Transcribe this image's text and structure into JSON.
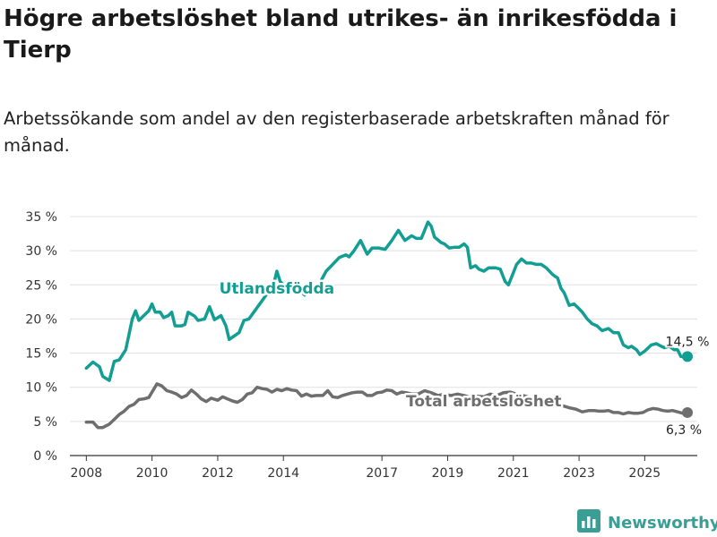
{
  "title": "Högre arbetslöshet bland utrikes- än inrikesfödda i Tierp",
  "subtitle": "Arbetssökande som andel av den registerbaserade arbetskraften månad för månad.",
  "brand": {
    "name": "Newsworthy",
    "icon": "bar-chart-logo-icon",
    "color": "#3a9e94"
  },
  "chart_data": {
    "type": "line",
    "ylim": [
      0,
      35
    ],
    "xlim": [
      2007.5,
      2026.6
    ],
    "y_ticks": [
      {
        "value": 0,
        "label": "0 %"
      },
      {
        "value": 5,
        "label": "5 %"
      },
      {
        "value": 10,
        "label": "10 %"
      },
      {
        "value": 15,
        "label": "15 %"
      },
      {
        "value": 20,
        "label": "20 %"
      },
      {
        "value": 25,
        "label": "25 %"
      },
      {
        "value": 30,
        "label": "30 %"
      },
      {
        "value": 35,
        "label": "35 %"
      }
    ],
    "x_ticks": [
      {
        "value": 2008,
        "label": "2008"
      },
      {
        "value": 2010,
        "label": "2010"
      },
      {
        "value": 2012,
        "label": "2012"
      },
      {
        "value": 2014,
        "label": "2014"
      },
      {
        "value": 2017,
        "label": "2017"
      },
      {
        "value": 2019,
        "label": "2019"
      },
      {
        "value": 2021,
        "label": "2021"
      },
      {
        "value": 2023,
        "label": "2023"
      },
      {
        "value": 2025,
        "label": "2025"
      }
    ],
    "grid": "horizontal",
    "series": [
      {
        "name": "Utlandsfödda",
        "color": "#139e94",
        "end_label": "14,5 %",
        "points": [
          [
            2008.0,
            12.8
          ],
          [
            2008.2,
            13.7
          ],
          [
            2008.4,
            13.0
          ],
          [
            2008.5,
            11.6
          ],
          [
            2008.7,
            11.0
          ],
          [
            2008.85,
            13.8
          ],
          [
            2009.0,
            14.0
          ],
          [
            2009.2,
            15.5
          ],
          [
            2009.4,
            20.0
          ],
          [
            2009.5,
            21.2
          ],
          [
            2009.6,
            19.8
          ],
          [
            2009.75,
            20.5
          ],
          [
            2009.9,
            21.2
          ],
          [
            2010.0,
            22.2
          ],
          [
            2010.1,
            21.0
          ],
          [
            2010.25,
            21.0
          ],
          [
            2010.35,
            20.2
          ],
          [
            2010.5,
            20.5
          ],
          [
            2010.6,
            21.0
          ],
          [
            2010.7,
            19.0
          ],
          [
            2010.9,
            19.0
          ],
          [
            2011.0,
            19.2
          ],
          [
            2011.1,
            21.0
          ],
          [
            2011.3,
            20.4
          ],
          [
            2011.4,
            19.8
          ],
          [
            2011.6,
            20.0
          ],
          [
            2011.75,
            21.8
          ],
          [
            2011.9,
            19.9
          ],
          [
            2012.1,
            20.5
          ],
          [
            2012.25,
            19.0
          ],
          [
            2012.35,
            17.0
          ],
          [
            2012.5,
            17.5
          ],
          [
            2012.65,
            18.0
          ],
          [
            2012.8,
            19.8
          ],
          [
            2012.95,
            20.0
          ],
          [
            2013.1,
            21.0
          ],
          [
            2013.25,
            22.0
          ],
          [
            2013.5,
            23.7
          ],
          [
            2013.7,
            25.0
          ],
          [
            2013.8,
            27.0
          ],
          [
            2013.9,
            25.5
          ],
          [
            2014.1,
            24.5
          ],
          [
            2014.3,
            24.0
          ],
          [
            2014.5,
            24.2
          ],
          [
            2014.65,
            23.5
          ],
          [
            2014.9,
            24.5
          ],
          [
            2015.1,
            25.2
          ],
          [
            2015.3,
            27.0
          ],
          [
            2015.5,
            28.0
          ],
          [
            2015.7,
            29.0
          ],
          [
            2015.9,
            29.4
          ],
          [
            2016.0,
            29.1
          ],
          [
            2016.15,
            30.0
          ],
          [
            2016.35,
            31.5
          ],
          [
            2016.45,
            30.5
          ],
          [
            2016.55,
            29.5
          ],
          [
            2016.7,
            30.4
          ],
          [
            2016.9,
            30.4
          ],
          [
            2017.1,
            30.2
          ],
          [
            2017.3,
            31.5
          ],
          [
            2017.5,
            33.0
          ],
          [
            2017.7,
            31.5
          ],
          [
            2017.9,
            32.2
          ],
          [
            2018.05,
            31.8
          ],
          [
            2018.2,
            31.8
          ],
          [
            2018.3,
            33.0
          ],
          [
            2018.4,
            34.2
          ],
          [
            2018.5,
            33.6
          ],
          [
            2018.6,
            32.0
          ],
          [
            2018.8,
            31.2
          ],
          [
            2018.9,
            31.0
          ],
          [
            2019.05,
            30.4
          ],
          [
            2019.2,
            30.5
          ],
          [
            2019.35,
            30.5
          ],
          [
            2019.5,
            31.0
          ],
          [
            2019.6,
            30.5
          ],
          [
            2019.7,
            27.5
          ],
          [
            2019.85,
            27.8
          ],
          [
            2019.95,
            27.3
          ],
          [
            2020.1,
            27.0
          ],
          [
            2020.25,
            27.5
          ],
          [
            2020.45,
            27.5
          ],
          [
            2020.6,
            27.3
          ],
          [
            2020.75,
            25.5
          ],
          [
            2020.85,
            25.0
          ],
          [
            2021.0,
            26.8
          ],
          [
            2021.1,
            28.0
          ],
          [
            2021.25,
            28.8
          ],
          [
            2021.4,
            28.2
          ],
          [
            2021.55,
            28.2
          ],
          [
            2021.7,
            28.0
          ],
          [
            2021.85,
            28.0
          ],
          [
            2022.0,
            27.5
          ],
          [
            2022.2,
            26.5
          ],
          [
            2022.35,
            26.0
          ],
          [
            2022.45,
            24.5
          ],
          [
            2022.55,
            23.8
          ],
          [
            2022.7,
            22.0
          ],
          [
            2022.85,
            22.2
          ],
          [
            2023.0,
            21.5
          ],
          [
            2023.1,
            21.0
          ],
          [
            2023.25,
            20.0
          ],
          [
            2023.4,
            19.3
          ],
          [
            2023.55,
            19.0
          ],
          [
            2023.7,
            18.3
          ],
          [
            2023.9,
            18.6
          ],
          [
            2024.05,
            18.0
          ],
          [
            2024.2,
            18.0
          ],
          [
            2024.35,
            16.2
          ],
          [
            2024.5,
            15.8
          ],
          [
            2024.6,
            16.0
          ],
          [
            2024.75,
            15.5
          ],
          [
            2024.85,
            14.8
          ],
          [
            2025.0,
            15.3
          ],
          [
            2025.2,
            16.2
          ],
          [
            2025.35,
            16.4
          ],
          [
            2025.5,
            16.0
          ],
          [
            2025.6,
            15.8
          ],
          [
            2025.75,
            16.0
          ],
          [
            2025.9,
            15.5
          ],
          [
            2026.0,
            15.5
          ],
          [
            2026.1,
            14.5
          ],
          [
            2026.3,
            14.5
          ]
        ]
      },
      {
        "name": "Total arbetslöshet",
        "color": "#6e6e6e",
        "end_label": "6,3 %",
        "points": [
          [
            2008.0,
            4.9
          ],
          [
            2008.2,
            4.9
          ],
          [
            2008.35,
            4.1
          ],
          [
            2008.5,
            4.1
          ],
          [
            2008.7,
            4.6
          ],
          [
            2008.85,
            5.3
          ],
          [
            2009.0,
            6.0
          ],
          [
            2009.15,
            6.5
          ],
          [
            2009.3,
            7.2
          ],
          [
            2009.45,
            7.5
          ],
          [
            2009.6,
            8.2
          ],
          [
            2009.75,
            8.3
          ],
          [
            2009.9,
            8.5
          ],
          [
            2010.0,
            9.3
          ],
          [
            2010.15,
            10.5
          ],
          [
            2010.3,
            10.2
          ],
          [
            2010.45,
            9.5
          ],
          [
            2010.6,
            9.3
          ],
          [
            2010.75,
            9.0
          ],
          [
            2010.9,
            8.5
          ],
          [
            2011.05,
            8.8
          ],
          [
            2011.2,
            9.6
          ],
          [
            2011.35,
            9.0
          ],
          [
            2011.5,
            8.3
          ],
          [
            2011.65,
            7.9
          ],
          [
            2011.8,
            8.4
          ],
          [
            2012.0,
            8.1
          ],
          [
            2012.15,
            8.6
          ],
          [
            2012.3,
            8.3
          ],
          [
            2012.45,
            8.0
          ],
          [
            2012.6,
            7.8
          ],
          [
            2012.75,
            8.2
          ],
          [
            2012.9,
            9.0
          ],
          [
            2013.05,
            9.2
          ],
          [
            2013.2,
            10.0
          ],
          [
            2013.35,
            9.8
          ],
          [
            2013.5,
            9.7
          ],
          [
            2013.65,
            9.3
          ],
          [
            2013.8,
            9.7
          ],
          [
            2013.95,
            9.5
          ],
          [
            2014.1,
            9.8
          ],
          [
            2014.25,
            9.6
          ],
          [
            2014.4,
            9.5
          ],
          [
            2014.55,
            8.7
          ],
          [
            2014.7,
            9.0
          ],
          [
            2014.85,
            8.7
          ],
          [
            2015.0,
            8.8
          ],
          [
            2015.2,
            8.8
          ],
          [
            2015.35,
            9.5
          ],
          [
            2015.5,
            8.6
          ],
          [
            2015.65,
            8.5
          ],
          [
            2015.8,
            8.8
          ],
          [
            2015.95,
            9.0
          ],
          [
            2016.1,
            9.2
          ],
          [
            2016.25,
            9.3
          ],
          [
            2016.4,
            9.3
          ],
          [
            2016.55,
            8.8
          ],
          [
            2016.7,
            8.8
          ],
          [
            2016.85,
            9.2
          ],
          [
            2017.0,
            9.3
          ],
          [
            2017.15,
            9.6
          ],
          [
            2017.3,
            9.5
          ],
          [
            2017.45,
            9.0
          ],
          [
            2017.6,
            9.3
          ],
          [
            2017.75,
            9.2
          ],
          [
            2017.9,
            9.0
          ],
          [
            2018.1,
            9.0
          ],
          [
            2018.3,
            9.5
          ],
          [
            2018.5,
            9.2
          ],
          [
            2018.7,
            8.8
          ],
          [
            2018.9,
            9.0
          ],
          [
            2019.1,
            8.8
          ],
          [
            2019.3,
            9.0
          ],
          [
            2019.5,
            8.8
          ],
          [
            2019.7,
            8.5
          ],
          [
            2019.9,
            8.7
          ],
          [
            2020.1,
            8.6
          ],
          [
            2020.3,
            9.0
          ],
          [
            2020.5,
            8.8
          ],
          [
            2020.7,
            9.2
          ],
          [
            2020.9,
            9.3
          ],
          [
            2021.1,
            9.0
          ],
          [
            2021.3,
            8.8
          ],
          [
            2021.5,
            8.5
          ],
          [
            2021.7,
            8.3
          ],
          [
            2021.9,
            8.0
          ],
          [
            2022.1,
            7.8
          ],
          [
            2022.3,
            7.6
          ],
          [
            2022.5,
            7.3
          ],
          [
            2022.7,
            7.0
          ],
          [
            2022.9,
            6.8
          ],
          [
            2023.1,
            6.4
          ],
          [
            2023.3,
            6.6
          ],
          [
            2023.45,
            6.6
          ],
          [
            2023.6,
            6.5
          ],
          [
            2023.75,
            6.5
          ],
          [
            2023.9,
            6.6
          ],
          [
            2024.05,
            6.3
          ],
          [
            2024.2,
            6.3
          ],
          [
            2024.35,
            6.1
          ],
          [
            2024.5,
            6.3
          ],
          [
            2024.65,
            6.2
          ],
          [
            2024.8,
            6.2
          ],
          [
            2024.95,
            6.3
          ],
          [
            2025.1,
            6.7
          ],
          [
            2025.25,
            6.9
          ],
          [
            2025.4,
            6.8
          ],
          [
            2025.55,
            6.6
          ],
          [
            2025.7,
            6.5
          ],
          [
            2025.85,
            6.6
          ],
          [
            2026.0,
            6.4
          ],
          [
            2026.15,
            6.2
          ],
          [
            2026.3,
            6.3
          ]
        ]
      }
    ]
  }
}
